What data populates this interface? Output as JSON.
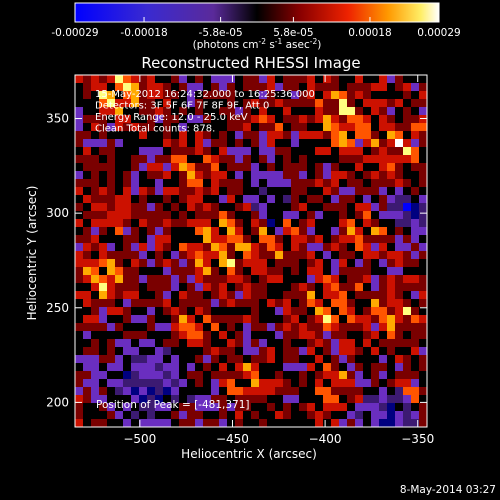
{
  "colorbar": {
    "tick_labels": [
      "-0.00029",
      "-0.00018",
      "-5.8e-05",
      "5.8e-05",
      "0.00018",
      "0.00029"
    ],
    "ticks": [
      -0.00029,
      -0.00018,
      -5.8e-05,
      5.8e-05,
      0.00018,
      0.00029
    ],
    "range": [
      -0.00029,
      0.00029
    ],
    "units_label": "(photons cm",
    "units_exp1": "-2",
    "units_mid": " s",
    "units_exp2": "-1",
    "units_tail": " asec",
    "units_exp3": "-2",
    "units_close": ")"
  },
  "chart_data": {
    "type": "heatmap",
    "title": "Reconstructed RHESSI Image",
    "xlabel": "Heliocentric X (arcsec)",
    "ylabel": "Heliocentric Y (arcsec)",
    "xlim": [
      -535,
      -345
    ],
    "ylim": [
      187,
      373
    ],
    "x_ticks": [
      -500,
      -450,
      -400,
      -350
    ],
    "x_tick_labels": [
      "−500",
      "−450",
      "−400",
      "−350"
    ],
    "y_ticks": [
      200,
      250,
      300,
      350
    ],
    "y_tick_labels": [
      "200",
      "250",
      "300",
      "350"
    ],
    "annotations": [
      "15-May-2012 16:24:32.000 to 16:25:36.000",
      "Detectors: 3F 5F 6F 7F 8F 9F, Att 0",
      "Energy Range: 12.0 - 25.0 keV",
      "Clean     Total counts: 878."
    ],
    "peak_label": "Position of Peak = [-481,371]",
    "peak_position": [
      -481,
      371
    ],
    "color_scale": [
      "#0000ff",
      "#000080",
      "#3c1a72",
      "#6a2ec0",
      "#000000",
      "#7a0000",
      "#cc1100",
      "#ff5500",
      "#ffaa00",
      "#ffff80",
      "#ffffff"
    ]
  },
  "footer": {
    "date": "8-May-2014 03:27"
  }
}
